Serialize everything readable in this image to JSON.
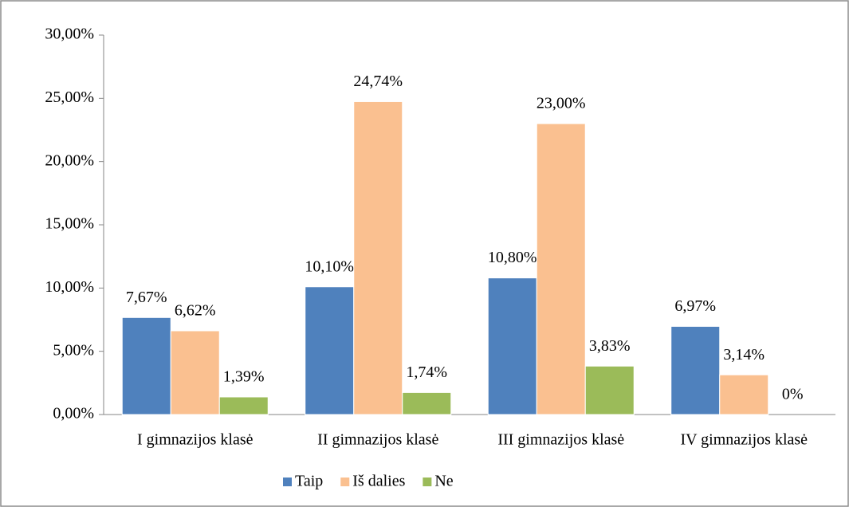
{
  "chart_data": {
    "type": "bar",
    "categories": [
      "I gimnazijos klasė",
      "II gimnazijos klasė",
      "III gimnazijos klasė",
      "IV gimnazijos klasė"
    ],
    "series": [
      {
        "name": "Taip",
        "color": "#4f81bd",
        "values": [
          7.67,
          10.1,
          10.8,
          6.97
        ],
        "value_labels": [
          "7,67%",
          "10,10%",
          "10,80%",
          "6,97%"
        ]
      },
      {
        "name": "Iš dalies",
        "color": "#fac090",
        "values": [
          6.62,
          24.74,
          23.0,
          3.14
        ],
        "value_labels": [
          "6,62%",
          "24,74%",
          "23,00%",
          "3,14%"
        ]
      },
      {
        "name": "Ne",
        "color": "#9bbb59",
        "values": [
          1.39,
          1.74,
          3.83,
          0
        ],
        "value_labels": [
          "1,39%",
          "1,74%",
          "3,83%",
          "0%"
        ]
      }
    ],
    "ylim": [
      0,
      30
    ],
    "yticks": [
      {
        "value": 0,
        "label": "0,00%"
      },
      {
        "value": 5,
        "label": "5,00%"
      },
      {
        "value": 10,
        "label": "10,00%"
      },
      {
        "value": 15,
        "label": "15,00%"
      },
      {
        "value": 20,
        "label": "20,00%"
      },
      {
        "value": 25,
        "label": "25,00%"
      },
      {
        "value": 30,
        "label": "30,00%"
      }
    ],
    "legend": "bottom"
  }
}
